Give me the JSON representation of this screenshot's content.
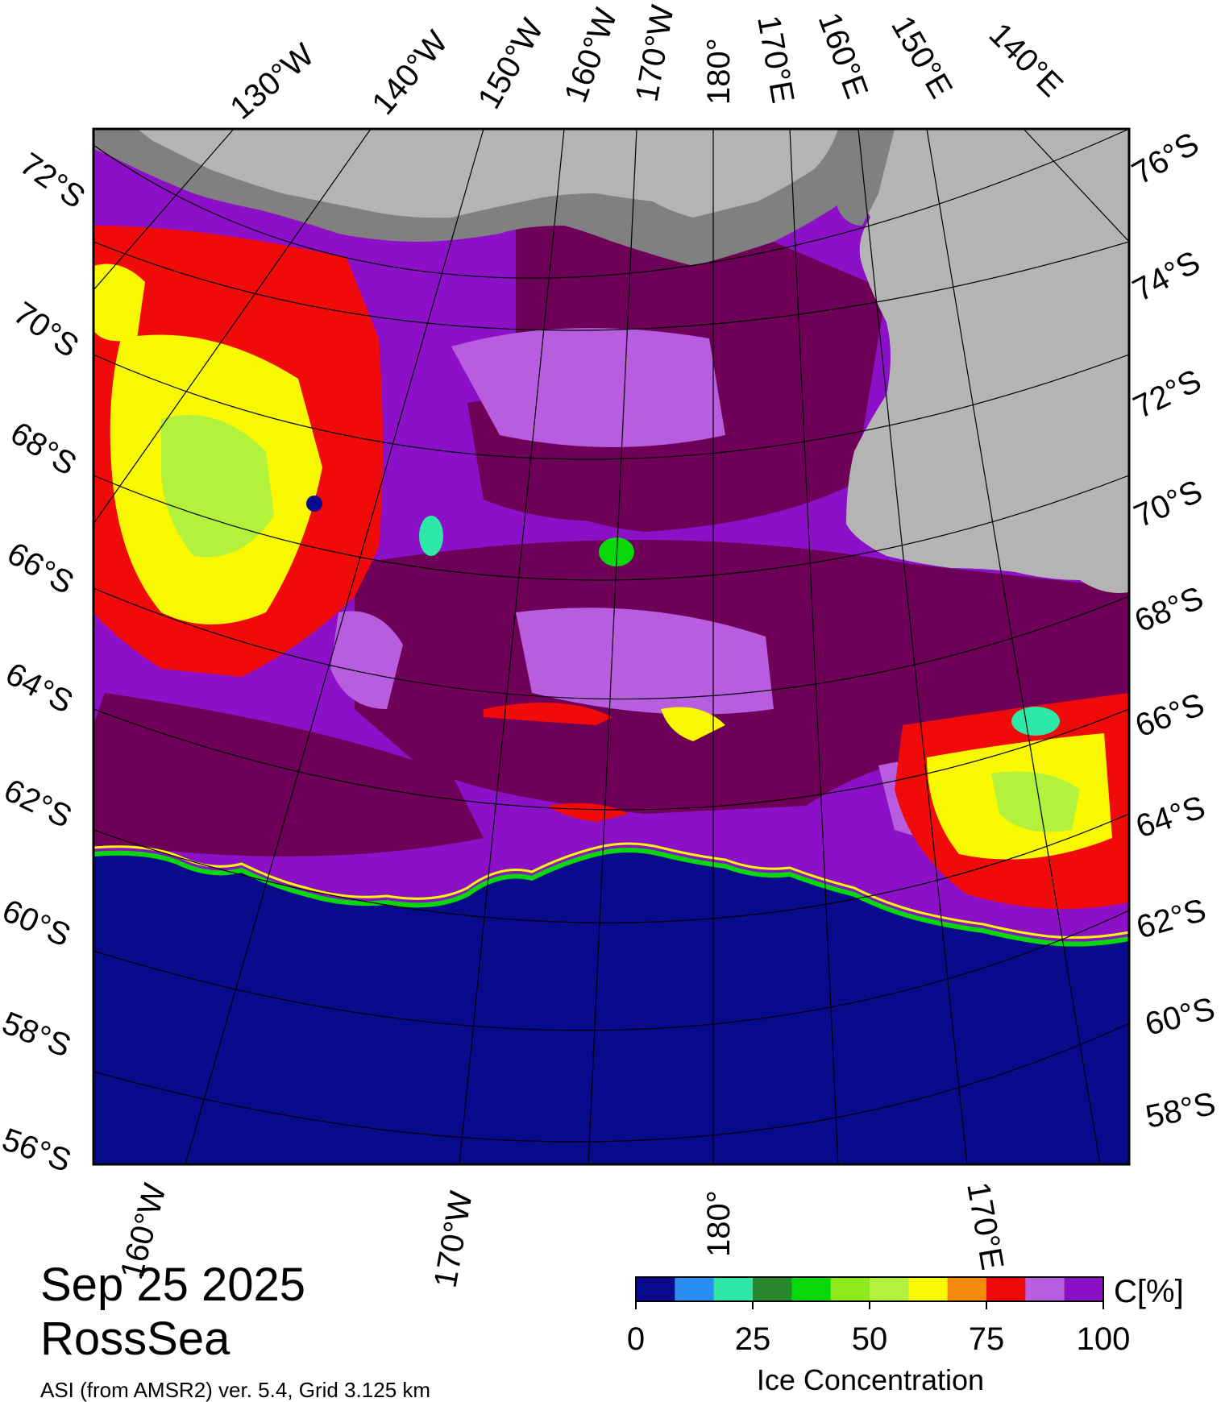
{
  "meta": {
    "date": "Sep 25 2025",
    "region": "RossSea",
    "product": "ASI (from AMSR2) ver. 5.4,  Grid 3.125 km"
  },
  "graticule": {
    "top_lon_labels": [
      "130°W",
      "140°W",
      "150°W",
      "160°W",
      "170°W",
      "180°",
      "170°E",
      "160°E",
      "150°E",
      "140°E"
    ],
    "bottom_lon_labels": [
      "160°W",
      "170°W",
      "180°",
      "170°E"
    ],
    "left_lat_labels": [
      "72°S",
      "70°S",
      "68°S",
      "66°S",
      "64°S",
      "62°S",
      "60°S",
      "58°S",
      "56°S"
    ],
    "right_lat_labels": [
      "76°S",
      "74°S",
      "72°S",
      "70°S",
      "68°S",
      "66°S",
      "64°S",
      "62°S",
      "60°S",
      "58°S"
    ]
  },
  "legend": {
    "title": "Ice Concentration",
    "unit": "C[%]",
    "tick_labels": [
      "0",
      "25",
      "50",
      "75",
      "100"
    ],
    "colors": [
      "#0a0a8c",
      "#2a8ef5",
      "#2ee8a8",
      "#27872a",
      "#08d80a",
      "#8ee81a",
      "#b2f23c",
      "#f8f800",
      "#f5890a",
      "#f00a0a",
      "#b85ce0",
      "#8b10c8"
    ]
  },
  "colors": {
    "open_water": "#0a0a8c",
    "ice_full": "#6e0058",
    "ice_high": "#8b10c8",
    "ice_mid": "#b85ce0",
    "land": "#b4b4b4",
    "land_shelf": "#808080"
  }
}
